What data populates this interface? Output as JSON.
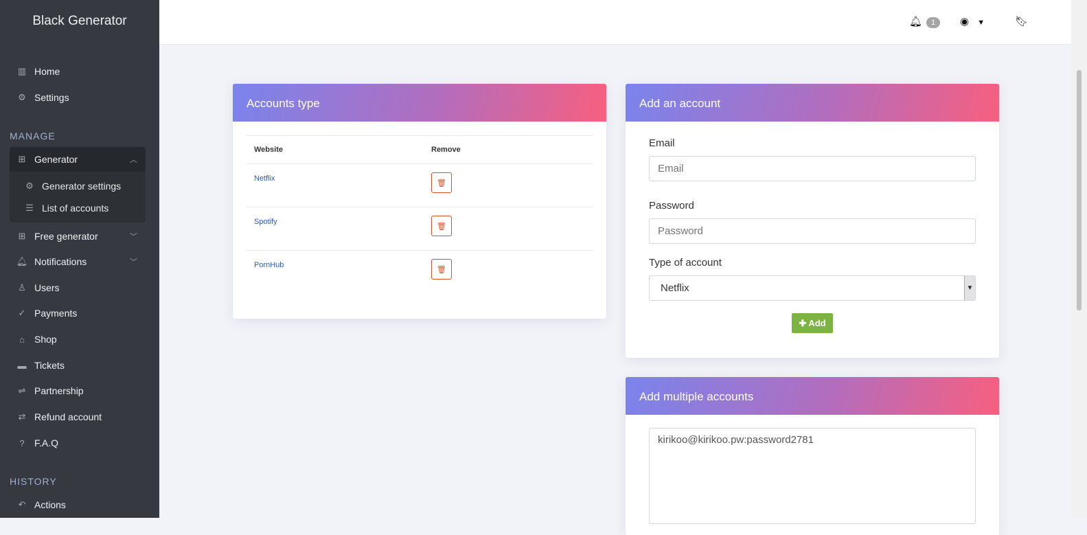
{
  "brand": "Black Generator",
  "sidebar": {
    "items": [
      {
        "label": "Home",
        "icon": "bar-chart-icon"
      },
      {
        "label": "Settings",
        "icon": "gear-icon"
      }
    ],
    "manage_label": "MANAGE",
    "generator": {
      "label": "Generator",
      "sub": [
        {
          "label": "Generator settings"
        },
        {
          "label": "List of accounts"
        }
      ]
    },
    "manage_items": [
      {
        "label": "Free generator"
      },
      {
        "label": "Notifications"
      },
      {
        "label": "Users"
      },
      {
        "label": "Payments"
      },
      {
        "label": "Shop"
      },
      {
        "label": "Tickets"
      },
      {
        "label": "Partnership"
      },
      {
        "label": "Refund account"
      },
      {
        "label": "F.A.Q"
      }
    ],
    "history_label": "HISTORY",
    "history_items": [
      {
        "label": "Actions"
      }
    ]
  },
  "topbar": {
    "notification_count": "1"
  },
  "accounts_type": {
    "title": "Accounts type",
    "columns": [
      "Website",
      "Remove"
    ],
    "rows": [
      {
        "website": "Netflix"
      },
      {
        "website": "Spotify"
      },
      {
        "website": "PornHub"
      }
    ]
  },
  "add_account": {
    "title": "Add an account",
    "email_label": "Email",
    "email_placeholder": "Email",
    "password_label": "Password",
    "password_placeholder": "Password",
    "type_label": "Type of account",
    "type_value": "Netflix",
    "add_label": "Add"
  },
  "add_multiple": {
    "title": "Add multiple accounts",
    "value": "kirikoo@kirikoo.pw:password2781"
  },
  "colors": {
    "sidebar": "#363a40",
    "gradient_start": "#7a84ec",
    "gradient_end": "#f85f7f",
    "add_button": "#7cb342",
    "delete": "#d2522c"
  }
}
